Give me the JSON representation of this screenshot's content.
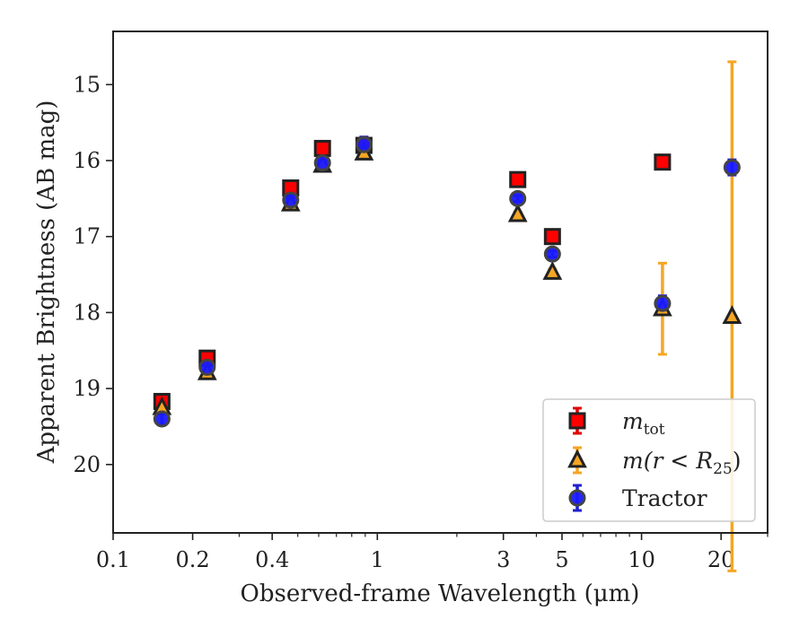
{
  "chart_data": {
    "type": "scatter",
    "title": "",
    "xlabel": "Observed-frame Wavelength (μm)",
    "ylabel": "Apparent Brightness (AB mag)",
    "xscale": "log",
    "xlim": [
      0.1,
      30
    ],
    "ylim": [
      20.9,
      14.3
    ],
    "y_inverted": true,
    "x_ticks": [
      0.1,
      0.2,
      0.4,
      1,
      3,
      5,
      10,
      20
    ],
    "x_tick_labels": [
      "0.1",
      "0.2",
      "0.4",
      "1",
      "3",
      "5",
      "10",
      "20"
    ],
    "y_ticks": [
      15,
      16,
      17,
      18,
      19,
      20
    ],
    "y_tick_labels": [
      "15",
      "16",
      "17",
      "18",
      "19",
      "20"
    ],
    "grid": false,
    "legend_position": "lower-right",
    "series": [
      {
        "name": "m_tot",
        "legend_main": "m",
        "legend_sub": "tot",
        "marker": "square",
        "color": "#ff0000",
        "edge_color": "#222222",
        "error_color": "#e00000",
        "points": [
          {
            "x": 0.153,
            "y": 19.17,
            "err": 0.03
          },
          {
            "x": 0.227,
            "y": 18.6,
            "err": 0.03
          },
          {
            "x": 0.47,
            "y": 16.36,
            "err": 0.02
          },
          {
            "x": 0.62,
            "y": 15.84,
            "err": 0.02
          },
          {
            "x": 0.89,
            "y": 15.8,
            "err": 0.02
          },
          {
            "x": 3.4,
            "y": 16.25,
            "err": 0.02
          },
          {
            "x": 4.6,
            "y": 17.0,
            "err": 0.02
          },
          {
            "x": 12.0,
            "y": 16.02,
            "err": 0.02
          }
        ]
      },
      {
        "name": "m(r < R25)",
        "legend_main": "m(r < R",
        "legend_sub": "25",
        "legend_tail": ")",
        "marker": "triangle",
        "color": "#f5a623",
        "edge_color": "#222222",
        "error_color": "#f5a623",
        "points": [
          {
            "x": 0.153,
            "y": 19.25,
            "err": 0.03
          },
          {
            "x": 0.227,
            "y": 18.79,
            "err": 0.03
          },
          {
            "x": 0.47,
            "y": 16.57,
            "err": 0.02
          },
          {
            "x": 0.62,
            "y": 16.06,
            "err": 0.02
          },
          {
            "x": 0.89,
            "y": 15.9,
            "err": 0.02
          },
          {
            "x": 3.4,
            "y": 16.71,
            "err": 0.03
          },
          {
            "x": 4.6,
            "y": 17.47,
            "err": 0.04
          },
          {
            "x": 12.0,
            "y": 17.95,
            "err": 0.6
          },
          {
            "x": 22.0,
            "y": 18.05,
            "err": 3.35
          }
        ]
      },
      {
        "name": "Tractor",
        "marker": "circle",
        "color": "#1a1aff",
        "edge_color": "#444444",
        "error_color": "#2020d0",
        "points": [
          {
            "x": 0.153,
            "y": 19.4,
            "err": 0.08
          },
          {
            "x": 0.227,
            "y": 18.72,
            "err": 0.05
          },
          {
            "x": 0.47,
            "y": 16.52,
            "err": 0.03
          },
          {
            "x": 0.62,
            "y": 16.03,
            "err": 0.03
          },
          {
            "x": 0.89,
            "y": 15.79,
            "err": 0.1
          },
          {
            "x": 3.4,
            "y": 16.5,
            "err": 0.04
          },
          {
            "x": 4.6,
            "y": 17.23,
            "err": 0.04
          },
          {
            "x": 12.0,
            "y": 17.88,
            "err": 0.1
          },
          {
            "x": 22.0,
            "y": 16.09,
            "err": 0.1
          }
        ]
      }
    ]
  }
}
